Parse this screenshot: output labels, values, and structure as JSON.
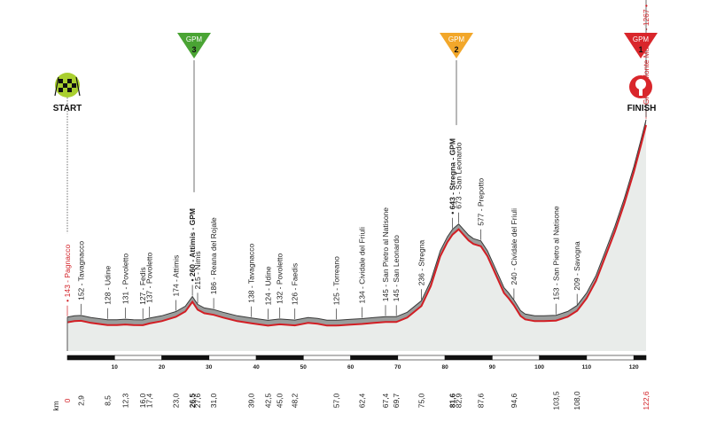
{
  "start_label": "START",
  "finish_label": "FINISH",
  "km_unit": "km",
  "gpm_badges": [
    {
      "label": "GPM",
      "number": "3",
      "color": "#4aa434"
    },
    {
      "label": "GPM",
      "number": "2",
      "color": "#f2a72a"
    },
    {
      "label": "GPM",
      "number": "1",
      "color": "#d9262b"
    }
  ],
  "scale_ticks": [
    "10",
    "20",
    "30",
    "40",
    "50",
    "60",
    "70",
    "80",
    "90",
    "100",
    "110",
    "120"
  ],
  "waypoints": [
    {
      "text": "• 143 - Pagnacco",
      "km": "0",
      "style": "red"
    },
    {
      "text": "152 - Tavagnacco",
      "km": "2,9",
      "style": "normal"
    },
    {
      "text": "128 - Udine",
      "km": "8,5",
      "style": "normal"
    },
    {
      "text": "131 - Povoletto",
      "km": "12,3",
      "style": "normal"
    },
    {
      "text": "127 - Fedis",
      "km": "16,0",
      "style": "normal"
    },
    {
      "text": "137 - Povoletto",
      "km": "17,4",
      "style": "normal"
    },
    {
      "text": "174 - Attimis",
      "km": "23,0",
      "style": "normal"
    },
    {
      "text": "• 260 - Attimis - GPM",
      "km": "26,5",
      "style": "bold"
    },
    {
      "text": "215 - Nimis",
      "km": "27,6",
      "style": "normal"
    },
    {
      "text": "186 - Reana del Rojale",
      "km": "31,0",
      "style": "normal"
    },
    {
      "text": "138 - Tavagnacco",
      "km": "39,0",
      "style": "normal"
    },
    {
      "text": "124 - Udine",
      "km": "42,5",
      "style": "normal"
    },
    {
      "text": "132 - Povoletto",
      "km": "45,0",
      "style": "normal"
    },
    {
      "text": "126 - Faedis",
      "km": "48,2",
      "style": "normal"
    },
    {
      "text": "125 - Torreano",
      "km": "57,0",
      "style": "normal"
    },
    {
      "text": "134 - Cividale del Friuli",
      "km": "62,4",
      "style": "normal"
    },
    {
      "text": "145 - San Pietro al Natisone",
      "km": "67,4",
      "style": "normal"
    },
    {
      "text": "145 - San Leonardo",
      "km": "69,7",
      "style": "normal"
    },
    {
      "text": "236 - Stregna",
      "km": "75,0",
      "style": "normal"
    },
    {
      "text": "• 643 - Stregna - GPM",
      "km": "81,6",
      "style": "bold"
    },
    {
      "text": "673 - San Leonardo",
      "km": "82,9",
      "style": "normal"
    },
    {
      "text": "577 - Prepotto",
      "km": "87,6",
      "style": "normal"
    },
    {
      "text": "240 - Cividale del Friuli",
      "km": "94,6",
      "style": "normal"
    },
    {
      "text": "153 - San Pietro al Natisone",
      "km": "103,5",
      "style": "normal"
    },
    {
      "text": "209 - Savogna",
      "km": "108,0",
      "style": "normal"
    },
    {
      "text": "GPM - Monte Matajur - 1267 •",
      "km": "122,6",
      "style": "red"
    }
  ],
  "profile": {
    "total_km": 122.6,
    "points": [
      [
        0,
        143
      ],
      [
        1.5,
        150
      ],
      [
        2.9,
        152
      ],
      [
        5,
        140
      ],
      [
        8.5,
        128
      ],
      [
        10.5,
        128
      ],
      [
        12.3,
        131
      ],
      [
        14,
        128
      ],
      [
        16,
        127
      ],
      [
        17.4,
        137
      ],
      [
        20,
        150
      ],
      [
        23,
        174
      ],
      [
        25,
        205
      ],
      [
        26.5,
        260
      ],
      [
        27.6,
        215
      ],
      [
        29,
        195
      ],
      [
        31,
        186
      ],
      [
        33,
        170
      ],
      [
        36,
        150
      ],
      [
        39,
        138
      ],
      [
        42.5,
        124
      ],
      [
        45,
        132
      ],
      [
        48.2,
        126
      ],
      [
        50,
        135
      ],
      [
        51,
        140
      ],
      [
        53,
        135
      ],
      [
        55,
        125
      ],
      [
        57,
        125
      ],
      [
        60,
        130
      ],
      [
        62.4,
        134
      ],
      [
        65,
        140
      ],
      [
        67.4,
        145
      ],
      [
        69.7,
        145
      ],
      [
        72,
        170
      ],
      [
        75,
        236
      ],
      [
        77,
        350
      ],
      [
        79,
        520
      ],
      [
        80.5,
        600
      ],
      [
        81.6,
        643
      ],
      [
        82.9,
        673
      ],
      [
        84,
        640
      ],
      [
        85,
        610
      ],
      [
        86,
        590
      ],
      [
        87.6,
        577
      ],
      [
        89,
        520
      ],
      [
        90,
        460
      ],
      [
        91.5,
        370
      ],
      [
        92.5,
        310
      ],
      [
        93.5,
        280
      ],
      [
        94.6,
        240
      ],
      [
        96,
        180
      ],
      [
        97,
        160
      ],
      [
        99,
        150
      ],
      [
        101,
        150
      ],
      [
        103.5,
        153
      ],
      [
        106,
        175
      ],
      [
        108,
        209
      ],
      [
        110,
        280
      ],
      [
        112,
        380
      ],
      [
        114,
        520
      ],
      [
        116,
        660
      ],
      [
        118,
        820
      ],
      [
        120,
        1000
      ],
      [
        121.5,
        1150
      ],
      [
        122.6,
        1267
      ]
    ]
  }
}
